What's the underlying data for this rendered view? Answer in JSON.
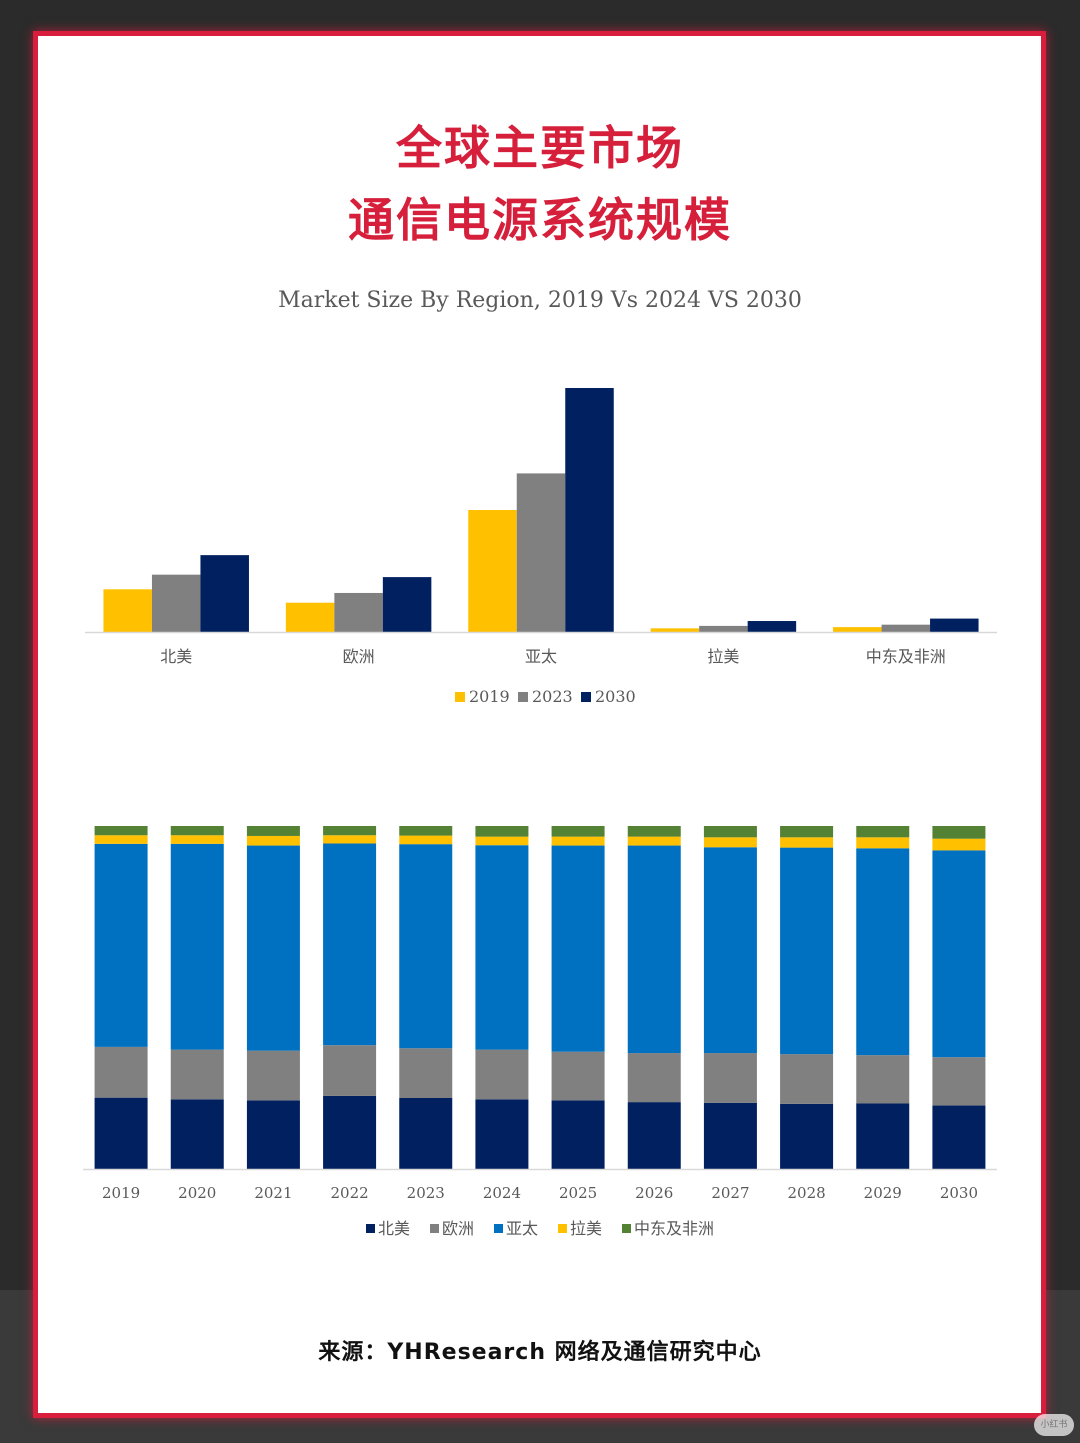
{
  "title_line1": "全球主要市场",
  "title_line2": "通信电源系统规模",
  "subtitle": "Market Size By Region, 2019 Vs 2024 VS 2030",
  "source": "来源：YHResearch  网络及通信研究中心",
  "watermark": "小红书",
  "colors": {
    "accent": "#d61f3b",
    "y2019": "#ffc000",
    "y2023": "#808080",
    "y2030": "#002060",
    "north_america": "#002060",
    "europe": "#808080",
    "asia_pacific": "#0070c0",
    "latin_america": "#ffc000",
    "mea": "#548235"
  },
  "chart_data": [
    {
      "type": "bar",
      "categories": [
        "北美",
        "欧洲",
        "亚太",
        "拉美",
        "中东及非洲"
      ],
      "series": [
        {
          "name": "2019",
          "values": [
            17.5,
            12,
            50,
            1.5,
            2
          ]
        },
        {
          "name": "2023",
          "values": [
            23.5,
            16,
            65,
            2.5,
            3
          ]
        },
        {
          "name": "2030",
          "values": [
            31.5,
            22.5,
            100,
            4.5,
            5.5
          ]
        }
      ],
      "ylim": [
        0,
        100
      ],
      "legend": "bottom",
      "grid": false
    },
    {
      "type": "bar",
      "stacked": true,
      "categories": [
        "2019",
        "2020",
        "2021",
        "2022",
        "2023",
        "2024",
        "2025",
        "2026",
        "2027",
        "2028",
        "2029",
        "2030"
      ],
      "series": [
        {
          "name": "北美",
          "values": [
            20.8,
            20.3,
            20.0,
            21.3,
            20.7,
            20.3,
            20.0,
            19.5,
            19.3,
            19.0,
            19.1,
            18.5
          ]
        },
        {
          "name": "欧洲",
          "values": [
            14.8,
            14.5,
            14.5,
            14.8,
            14.5,
            14.5,
            14.2,
            14.3,
            14.5,
            14.5,
            14.1,
            14.1
          ]
        },
        {
          "name": "亚太",
          "values": [
            59.2,
            60.0,
            59.8,
            58.8,
            59.5,
            59.6,
            60.1,
            60.5,
            60.0,
            60.2,
            60.3,
            60.3
          ]
        },
        {
          "name": "拉美",
          "values": [
            2.5,
            2.5,
            2.8,
            2.4,
            2.5,
            2.5,
            2.6,
            2.6,
            2.9,
            3.0,
            3.2,
            3.4
          ]
        },
        {
          "name": "中东及非洲",
          "values": [
            2.7,
            2.7,
            2.9,
            2.7,
            2.8,
            3.1,
            3.1,
            3.1,
            3.3,
            3.3,
            3.3,
            3.7
          ]
        }
      ],
      "ylim": [
        0,
        100
      ],
      "legend": "bottom",
      "grid": false
    }
  ]
}
